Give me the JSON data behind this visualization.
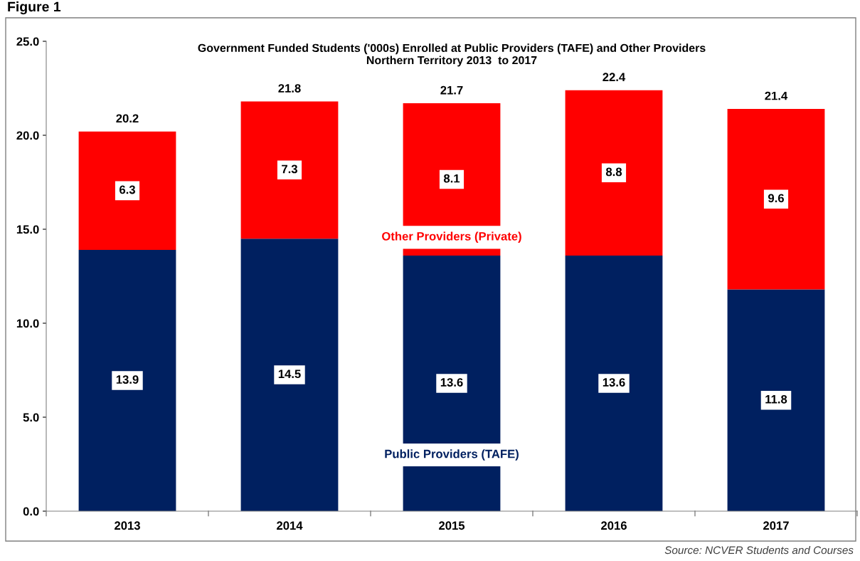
{
  "chart_data": {
    "type": "bar",
    "stacked": true,
    "title": "Government Funded Students ('000s) Enrolled at Public Providers (TAFE) and Other Providers\nNorthern Territory 2013  to 2017",
    "categories": [
      "2013",
      "2014",
      "2015",
      "2016",
      "2017"
    ],
    "series": [
      {
        "name": "Public Providers (TAFE)",
        "color": "#002060",
        "values": [
          13.9,
          14.5,
          13.6,
          13.6,
          11.8
        ]
      },
      {
        "name": "Other Providers (Private)",
        "color": "#ff0000",
        "values": [
          6.3,
          7.3,
          8.1,
          8.8,
          9.6
        ]
      }
    ],
    "data_labels": true,
    "totals": [
      "20.2",
      "21.8",
      "21.7",
      "22.4",
      "21.4"
    ],
    "ylim": [
      0,
      25
    ],
    "yticks": [
      {
        "value": 0,
        "label": "0.0"
      },
      {
        "value": 5,
        "label": "5.0"
      },
      {
        "value": 10,
        "label": "10.0"
      },
      {
        "value": 15,
        "label": "15.0"
      },
      {
        "value": 20,
        "label": "20.0"
      },
      {
        "value": 25,
        "label": "25.0"
      }
    ],
    "grid": false,
    "legend": false,
    "annotations": [
      "Figure 1",
      "Source: NCVER Students and Courses"
    ]
  }
}
